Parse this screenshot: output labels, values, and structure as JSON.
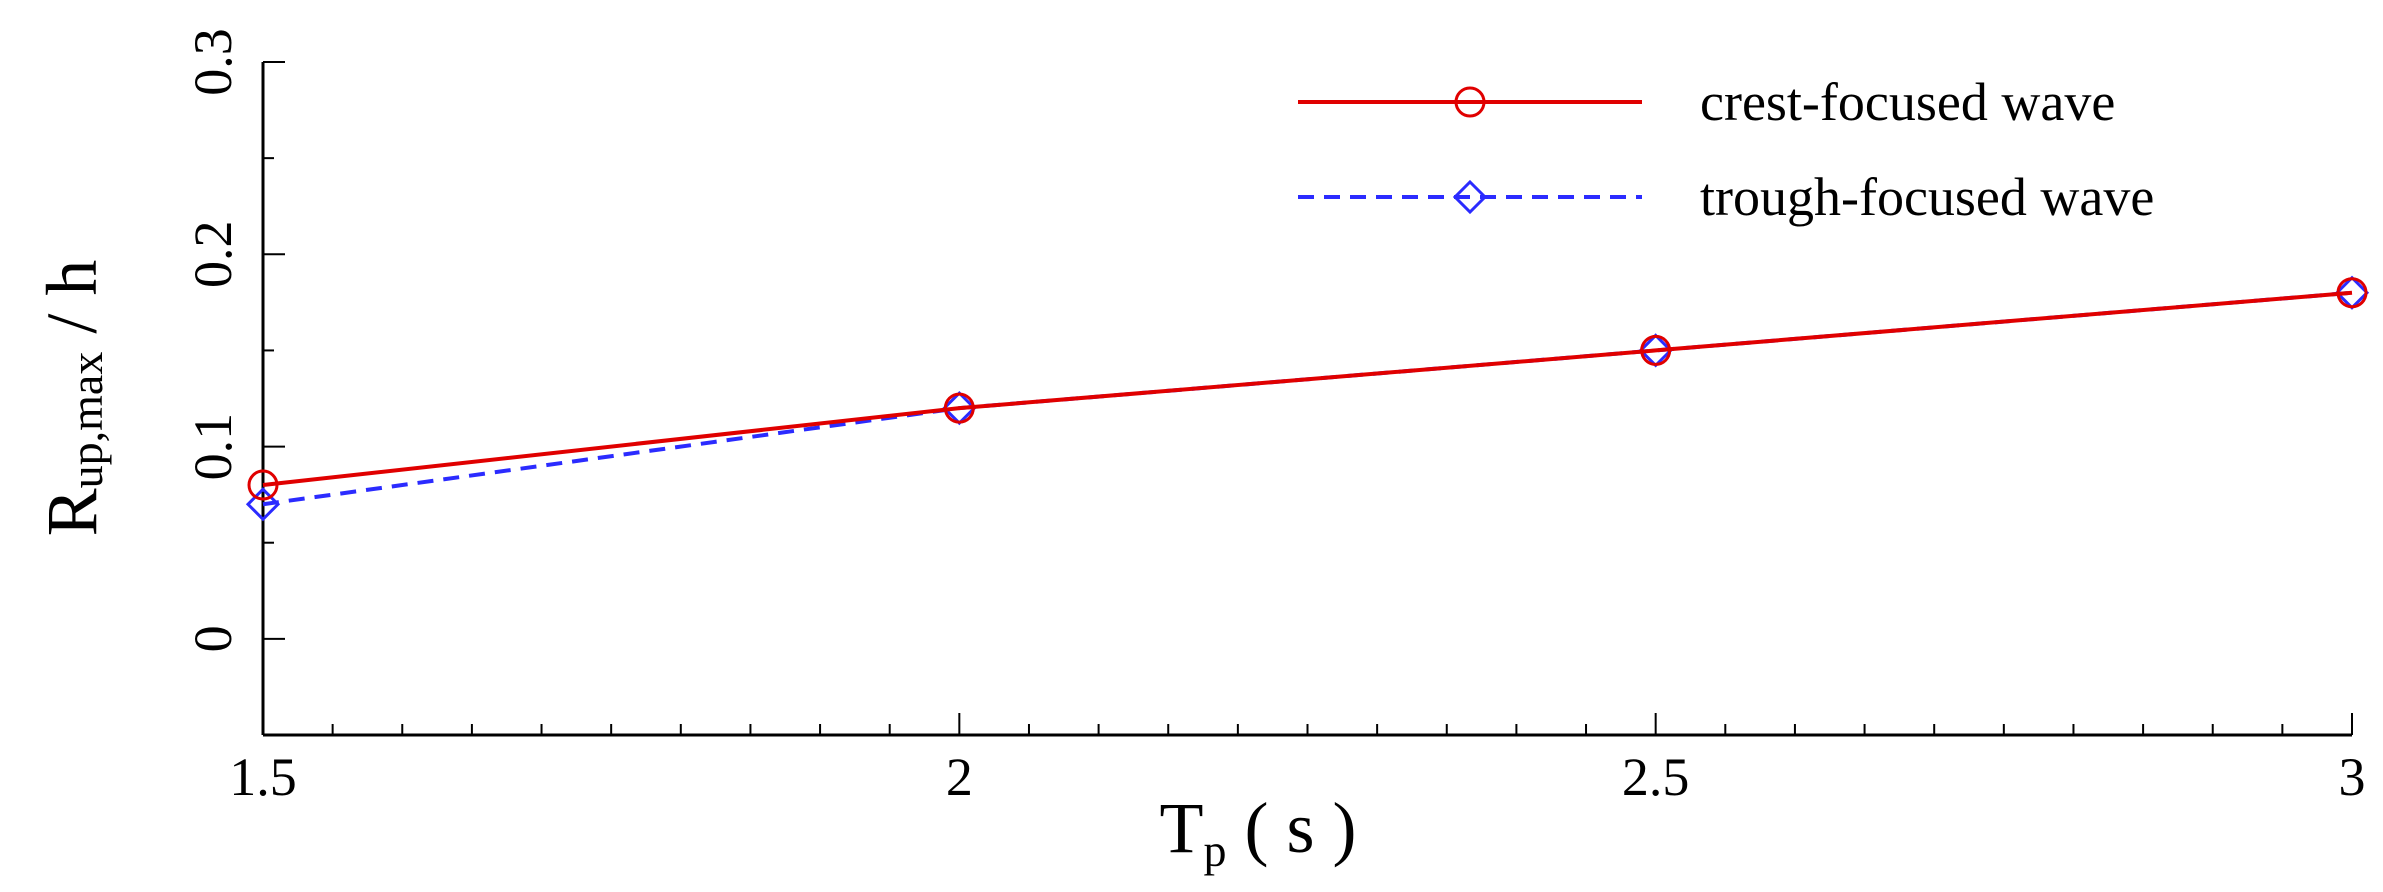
{
  "chart_data": {
    "type": "line",
    "xlabel": {
      "main": "T",
      "sub": "p",
      "rest": " ( s )"
    },
    "ylabel": {
      "main": "R",
      "sub": "up,max",
      "rest": " / h"
    },
    "xlim": [
      1.5,
      3
    ],
    "ylim": [
      -0.05,
      0.3
    ],
    "x_ticks": [
      1.5,
      2,
      2.5,
      3
    ],
    "x_tick_labels": [
      "1.5",
      "2",
      "2.5",
      "3"
    ],
    "y_ticks": [
      0,
      0.1,
      0.2,
      0.3
    ],
    "y_tick_labels": [
      "0",
      "0.1",
      "0.2",
      "0.3"
    ],
    "grid": false,
    "legend_position": "top-right",
    "series": [
      {
        "name": "crest-focused wave",
        "x": [
          1.5,
          2,
          2.5,
          3
        ],
        "values": [
          0.08,
          0.12,
          0.15,
          0.18
        ],
        "color": "#e00000",
        "line_style": "solid",
        "marker": "circle"
      },
      {
        "name": "trough-focused wave",
        "x": [
          1.5,
          2,
          2.5,
          3
        ],
        "values": [
          0.07,
          0.12,
          0.15,
          0.18
        ],
        "color": "#2b2bff",
        "line_style": "dashed",
        "marker": "diamond"
      }
    ]
  }
}
